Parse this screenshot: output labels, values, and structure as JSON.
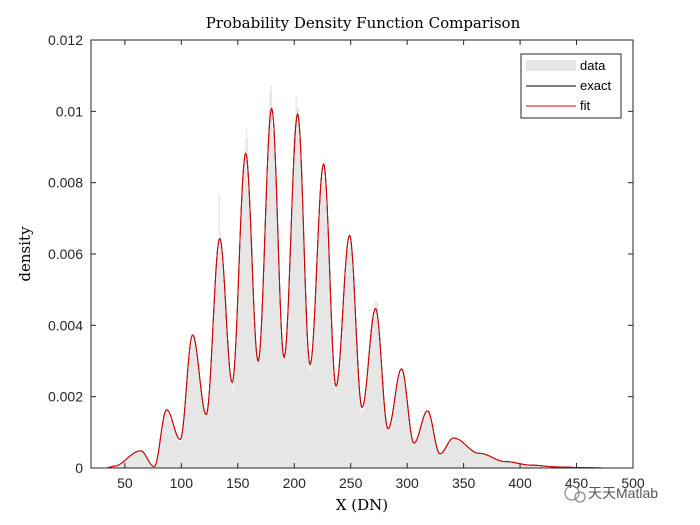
{
  "chart_data": {
    "type": "area",
    "title": "Probability Density Function Comparison",
    "xlabel": "X (DN)",
    "ylabel": "density",
    "xlim": [
      20,
      500
    ],
    "ylim": [
      0,
      0.012
    ],
    "x_ticks": [
      "50",
      "100",
      "150",
      "200",
      "250",
      "300",
      "350",
      "400",
      "450",
      "500"
    ],
    "y_ticks": [
      "0",
      "0.002",
      "0.004",
      "0.006",
      "0.008",
      "0.01",
      "0.012"
    ],
    "grid": false,
    "legend_position": "top-right",
    "legend": [
      "data",
      "exact",
      "fit"
    ],
    "series": [
      {
        "name": "data",
        "kind": "histogram",
        "color": "#e6e6e6"
      },
      {
        "name": "exact",
        "kind": "line",
        "color": "#000000"
      },
      {
        "name": "fit",
        "kind": "line",
        "color": "#e00000"
      }
    ],
    "peaks": [
      {
        "x": 40,
        "y": 5e-05
      },
      {
        "x": 64,
        "y": 0.00048
      },
      {
        "x": 87,
        "y": 0.00163
      },
      {
        "x": 110,
        "y": 0.00373
      },
      {
        "x": 134,
        "y": 0.00643
      },
      {
        "x": 157,
        "y": 0.00882
      },
      {
        "x": 180,
        "y": 0.01008
      },
      {
        "x": 203,
        "y": 0.00992
      },
      {
        "x": 226,
        "y": 0.00852
      },
      {
        "x": 249,
        "y": 0.00652
      },
      {
        "x": 272,
        "y": 0.00447
      },
      {
        "x": 295,
        "y": 0.00278
      },
      {
        "x": 318,
        "y": 0.0016
      },
      {
        "x": 341,
        "y": 0.00084
      },
      {
        "x": 364,
        "y": 0.00041
      },
      {
        "x": 387,
        "y": 0.00018
      },
      {
        "x": 410,
        "y": 8e-05
      },
      {
        "x": 433,
        "y": 3e-05
      },
      {
        "x": 456,
        "y": 1e-05
      }
    ],
    "valleys": [
      {
        "x": 76,
        "y": 4e-05
      },
      {
        "x": 99,
        "y": 0.0008
      },
      {
        "x": 122,
        "y": 0.0015
      },
      {
        "x": 145,
        "y": 0.0024
      },
      {
        "x": 168,
        "y": 0.003
      },
      {
        "x": 191,
        "y": 0.0031
      },
      {
        "x": 214,
        "y": 0.0029
      },
      {
        "x": 237,
        "y": 0.0023
      },
      {
        "x": 260,
        "y": 0.0017
      },
      {
        "x": 283,
        "y": 0.0011
      },
      {
        "x": 306,
        "y": 0.0007
      },
      {
        "x": 329,
        "y": 0.0004
      }
    ]
  },
  "watermark": "天天Matlab"
}
